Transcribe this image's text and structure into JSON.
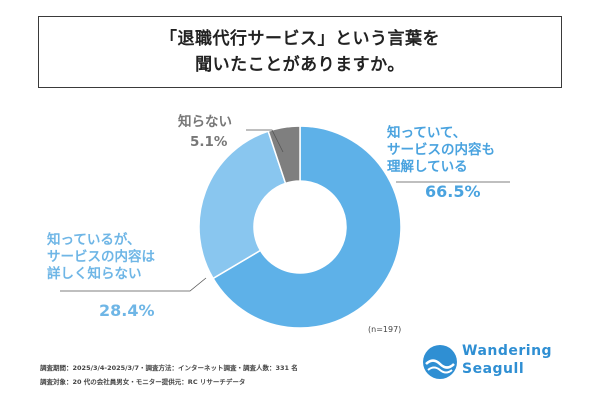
{
  "title": {
    "line1": "「退職代行サービス」という言葉を",
    "line2": "聞いたことがありますか。"
  },
  "chart_data": {
    "type": "pie",
    "donut": true,
    "slices": [
      {
        "label_lines": [
          "知っていて、",
          "サービスの内容も",
          "理解している"
        ],
        "value": 66.5,
        "value_text": "66.5%",
        "color": "#5eb1e8"
      },
      {
        "label_lines": [
          "知っているが、",
          "サービスの内容は",
          "詳しく知らない"
        ],
        "value": 28.4,
        "value_text": "28.4%",
        "color": "#89c6ef"
      },
      {
        "label_lines": [
          "知らない"
        ],
        "value": 5.1,
        "value_text": "5.1%",
        "color": "#7f7f7f"
      }
    ],
    "n_label": "(n=197)"
  },
  "footer": {
    "line1": "調査期間：2025/3/4-2025/3/7・調査方法：インターネット調査・調査人数：331 名",
    "line2": "調査対象：20 代の会社員男女・モニター提供元：RC リサーチデータ"
  },
  "logo": {
    "line1": "Wandering",
    "line2": "Seagull"
  }
}
